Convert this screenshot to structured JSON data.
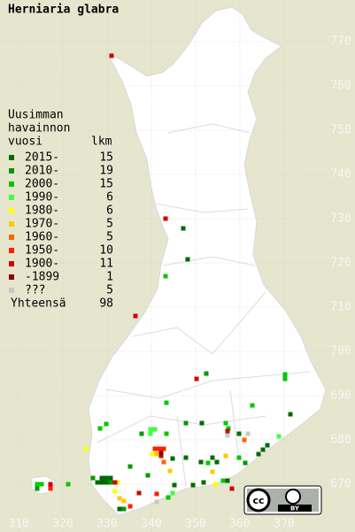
{
  "chart_data": {
    "type": "scatter",
    "title": "Herniaria glabra",
    "legend_title": [
      "Uusimman",
      "havainnon",
      "vuosi"
    ],
    "count_header": "lkm",
    "total_label": "Yhteensä",
    "total": 98,
    "license": "BY",
    "license_logo": "cc",
    "xlim": [
      305.8,
      386
    ],
    "ylim": [
      659.2,
      779.4
    ],
    "xticks": [
      310,
      320,
      330,
      340,
      350,
      360,
      370
    ],
    "yticks": [
      670,
      680,
      690,
      700,
      710,
      720,
      730,
      740,
      750,
      760,
      770
    ],
    "grid": true,
    "series": [
      {
        "name": "2015-",
        "color": "#006a00",
        "count": 15,
        "x": [
          347.2,
          348.2,
          351.4,
          359.8,
          371.4,
          366.2,
          365.2,
          364.2,
          344.8,
          347.8,
          353.8,
          354.8,
          351.2,
          328.8,
          329.8,
          330.8,
          327.8,
          328.8,
          329.8,
          345.2,
          349.4,
          357.2,
          351.8,
          332.8
        ],
        "y": [
          727.8,
          720.8,
          683.8,
          681.4,
          685.8,
          678.8,
          677.8,
          676.8,
          675.8,
          676,
          676,
          675,
          675,
          671.4,
          671.4,
          671.4,
          670.4,
          670.4,
          670.4,
          669.8,
          669.8,
          670.8,
          670.4,
          664.4
        ]
      },
      {
        "name": "2010-",
        "color": "#009a00",
        "count": 19,
        "x": [
          352.4,
          337.8,
          347.8,
          361.2,
          330.8,
          326.8,
          335.2,
          339.2,
          314.2,
          333.8
        ],
        "y": [
          695,
          681.4,
          683.8,
          674.8,
          670.4,
          671.4,
          674,
          672,
          669,
          664.4
        ]
      },
      {
        "name": "2000-",
        "color": "#00c800",
        "count": 15,
        "x": [
          343.2,
          370.2,
          370.2,
          343.4,
          329.8,
          328.4,
          343.4,
          356.8,
          357.4,
          362.8,
          352.8,
          359.8,
          356.2,
          314.2,
          315.2,
          321.2,
          343.8
        ],
        "y": [
          717,
          694.8,
          693.8,
          688.4,
          683.6,
          682.6,
          681.4,
          683.8,
          682.6,
          687.8,
          674.8,
          676,
          670.8,
          670,
          670,
          670,
          667
        ]
      },
      {
        "name": "1990-",
        "color": "#40ff40",
        "count": 6,
        "x": [
          339.8,
          340.8,
          339.8,
          368.8,
          344.8
        ],
        "y": [
          682.4,
          682.4,
          681.4,
          680.8,
          668
        ]
      },
      {
        "name": "1980-",
        "color": "#ffff00",
        "count": 6,
        "x": [
          325.2,
          340.2,
          354.4,
          332.4,
          331.8
        ],
        "y": [
          678,
          676.8,
          670,
          670.4,
          668.4
        ]
      },
      {
        "name": "1970-",
        "color": "#ffc800",
        "count": 5,
        "x": [
          341.2,
          356.8,
          344.2,
          353.8,
          332.8,
          333.8
        ],
        "y": [
          676.8,
          676.4,
          673,
          672.8,
          666.8,
          666.2
        ]
      },
      {
        "name": "1960-",
        "color": "#ff6400",
        "count": 5,
        "x": [
          361,
          342.8
        ],
        "y": [
          680,
          675
        ]
      },
      {
        "name": "1950-",
        "color": "#ff1e00",
        "count": 10,
        "x": [
          340.8,
          341.8,
          342.8,
          317.2,
          341.2,
          335.2
        ],
        "y": [
          678,
          678,
          678,
          669,
          667.8,
          665
        ]
      },
      {
        "name": "1900-",
        "color": "#d20000",
        "count": 11,
        "x": [
          331,
          343.2,
          336.4,
          350.2,
          357.2,
          342.2,
          331.8,
          317.2,
          358.2,
          337.2
        ],
        "y": [
          766.8,
          730,
          708,
          693.8,
          682,
          676.4,
          670.4,
          670,
          669,
          668
        ]
      },
      {
        "name": "-1899",
        "color": "#8c0000",
        "count": 1,
        "x": [
          342.2
        ],
        "y": [
          677
        ]
      },
      {
        "name": "???",
        "color": "#c8c8c8",
        "count": 5,
        "x": [
          357.2,
          361.8,
          341.2
        ],
        "y": [
          681,
          681.4,
          666
        ]
      }
    ]
  }
}
